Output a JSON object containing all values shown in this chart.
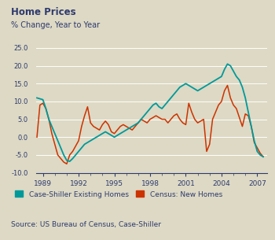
{
  "title": "Home Prices",
  "subtitle": "% Change, Year to Year",
  "source": "Source: US Bureau of Census, Case-Shiller",
  "background_color": "#ddd9c4",
  "title_color": "#2e3a6e",
  "axis_label_color": "#2e3a6e",
  "grid_color": "#ffffff",
  "ylim": [
    -10.0,
    27.0
  ],
  "yticks": [
    -10.0,
    -5.0,
    0.0,
    5.0,
    10.0,
    15.0,
    20.0,
    25.0
  ],
  "xtick_years": [
    1989,
    1992,
    1995,
    1998,
    2001,
    2004,
    2007
  ],
  "legend_cs": "Case-Shiller Existing Homes",
  "legend_census": "Census: New Homes",
  "cs_color": "#009999",
  "census_color": "#cc3300",
  "case_shiller_x": [
    1988.5,
    1989.0,
    1989.25,
    1989.5,
    1989.75,
    1990.0,
    1990.25,
    1990.5,
    1990.75,
    1991.0,
    1991.25,
    1991.5,
    1991.75,
    1992.0,
    1992.25,
    1992.5,
    1992.75,
    1993.0,
    1993.25,
    1993.5,
    1993.75,
    1994.0,
    1994.25,
    1994.5,
    1994.75,
    1995.0,
    1995.25,
    1995.5,
    1995.75,
    1996.0,
    1996.25,
    1996.5,
    1996.75,
    1997.0,
    1997.25,
    1997.5,
    1997.75,
    1998.0,
    1998.25,
    1998.5,
    1998.75,
    1999.0,
    1999.25,
    1999.5,
    1999.75,
    2000.0,
    2000.25,
    2000.5,
    2000.75,
    2001.0,
    2001.25,
    2001.5,
    2001.75,
    2002.0,
    2002.25,
    2002.5,
    2002.75,
    2003.0,
    2003.25,
    2003.5,
    2003.75,
    2004.0,
    2004.25,
    2004.5,
    2004.75,
    2005.0,
    2005.25,
    2005.5,
    2005.75,
    2006.0,
    2006.25,
    2006.5,
    2006.75,
    2007.0,
    2007.25,
    2007.5
  ],
  "case_shiller_y": [
    11.0,
    10.5,
    8.0,
    5.0,
    3.0,
    1.0,
    -1.0,
    -3.0,
    -5.0,
    -6.5,
    -6.8,
    -6.0,
    -5.0,
    -4.0,
    -3.0,
    -2.0,
    -1.5,
    -1.0,
    -0.5,
    0.0,
    0.5,
    1.0,
    1.5,
    1.0,
    0.5,
    0.0,
    0.5,
    1.0,
    1.5,
    2.0,
    2.5,
    3.0,
    3.5,
    4.0,
    5.0,
    6.0,
    7.0,
    8.0,
    9.0,
    9.5,
    8.5,
    8.0,
    9.0,
    10.0,
    11.0,
    12.0,
    13.0,
    14.0,
    14.5,
    15.0,
    14.5,
    14.0,
    13.5,
    13.0,
    13.5,
    14.0,
    14.5,
    15.0,
    15.5,
    16.0,
    16.5,
    17.0,
    19.0,
    20.5,
    20.0,
    18.5,
    17.0,
    16.0,
    14.0,
    11.0,
    7.0,
    3.0,
    -1.0,
    -4.0,
    -5.0,
    -5.5
  ],
  "census_x": [
    1988.5,
    1988.75,
    1989.0,
    1989.25,
    1989.5,
    1989.75,
    1990.0,
    1990.25,
    1990.5,
    1990.75,
    1991.0,
    1991.25,
    1991.5,
    1991.75,
    1992.0,
    1992.25,
    1992.5,
    1992.75,
    1993.0,
    1993.25,
    1993.5,
    1993.75,
    1994.0,
    1994.25,
    1994.5,
    1994.75,
    1995.0,
    1995.25,
    1995.5,
    1995.75,
    1996.0,
    1996.25,
    1996.5,
    1996.75,
    1997.0,
    1997.25,
    1997.5,
    1997.75,
    1998.0,
    1998.25,
    1998.5,
    1998.75,
    1999.0,
    1999.25,
    1999.5,
    1999.75,
    2000.0,
    2000.25,
    2000.5,
    2000.75,
    2001.0,
    2001.25,
    2001.5,
    2001.75,
    2002.0,
    2002.25,
    2002.5,
    2002.75,
    2003.0,
    2003.25,
    2003.5,
    2003.75,
    2004.0,
    2004.25,
    2004.5,
    2004.75,
    2005.0,
    2005.25,
    2005.5,
    2005.75,
    2006.0,
    2006.25,
    2006.5,
    2006.75,
    2007.0,
    2007.25,
    2007.5
  ],
  "census_y": [
    0.0,
    9.0,
    9.5,
    8.0,
    5.0,
    1.0,
    -2.0,
    -5.0,
    -6.0,
    -7.0,
    -7.5,
    -5.0,
    -4.0,
    -2.5,
    -1.0,
    3.0,
    6.0,
    8.5,
    4.0,
    3.0,
    2.5,
    2.0,
    3.5,
    4.5,
    3.5,
    1.5,
    1.0,
    2.0,
    3.0,
    3.5,
    3.0,
    2.5,
    2.0,
    3.0,
    4.0,
    5.0,
    4.5,
    4.0,
    5.0,
    5.5,
    6.0,
    5.5,
    5.0,
    5.0,
    4.0,
    5.0,
    6.0,
    6.5,
    5.0,
    4.0,
    3.5,
    9.5,
    7.0,
    5.0,
    4.0,
    4.5,
    5.0,
    -4.0,
    -2.0,
    5.0,
    7.0,
    9.0,
    10.0,
    13.0,
    14.5,
    11.0,
    9.0,
    8.0,
    5.5,
    3.0,
    6.5,
    6.0,
    3.0,
    -1.5,
    -3.0,
    -4.5,
    -5.5
  ]
}
